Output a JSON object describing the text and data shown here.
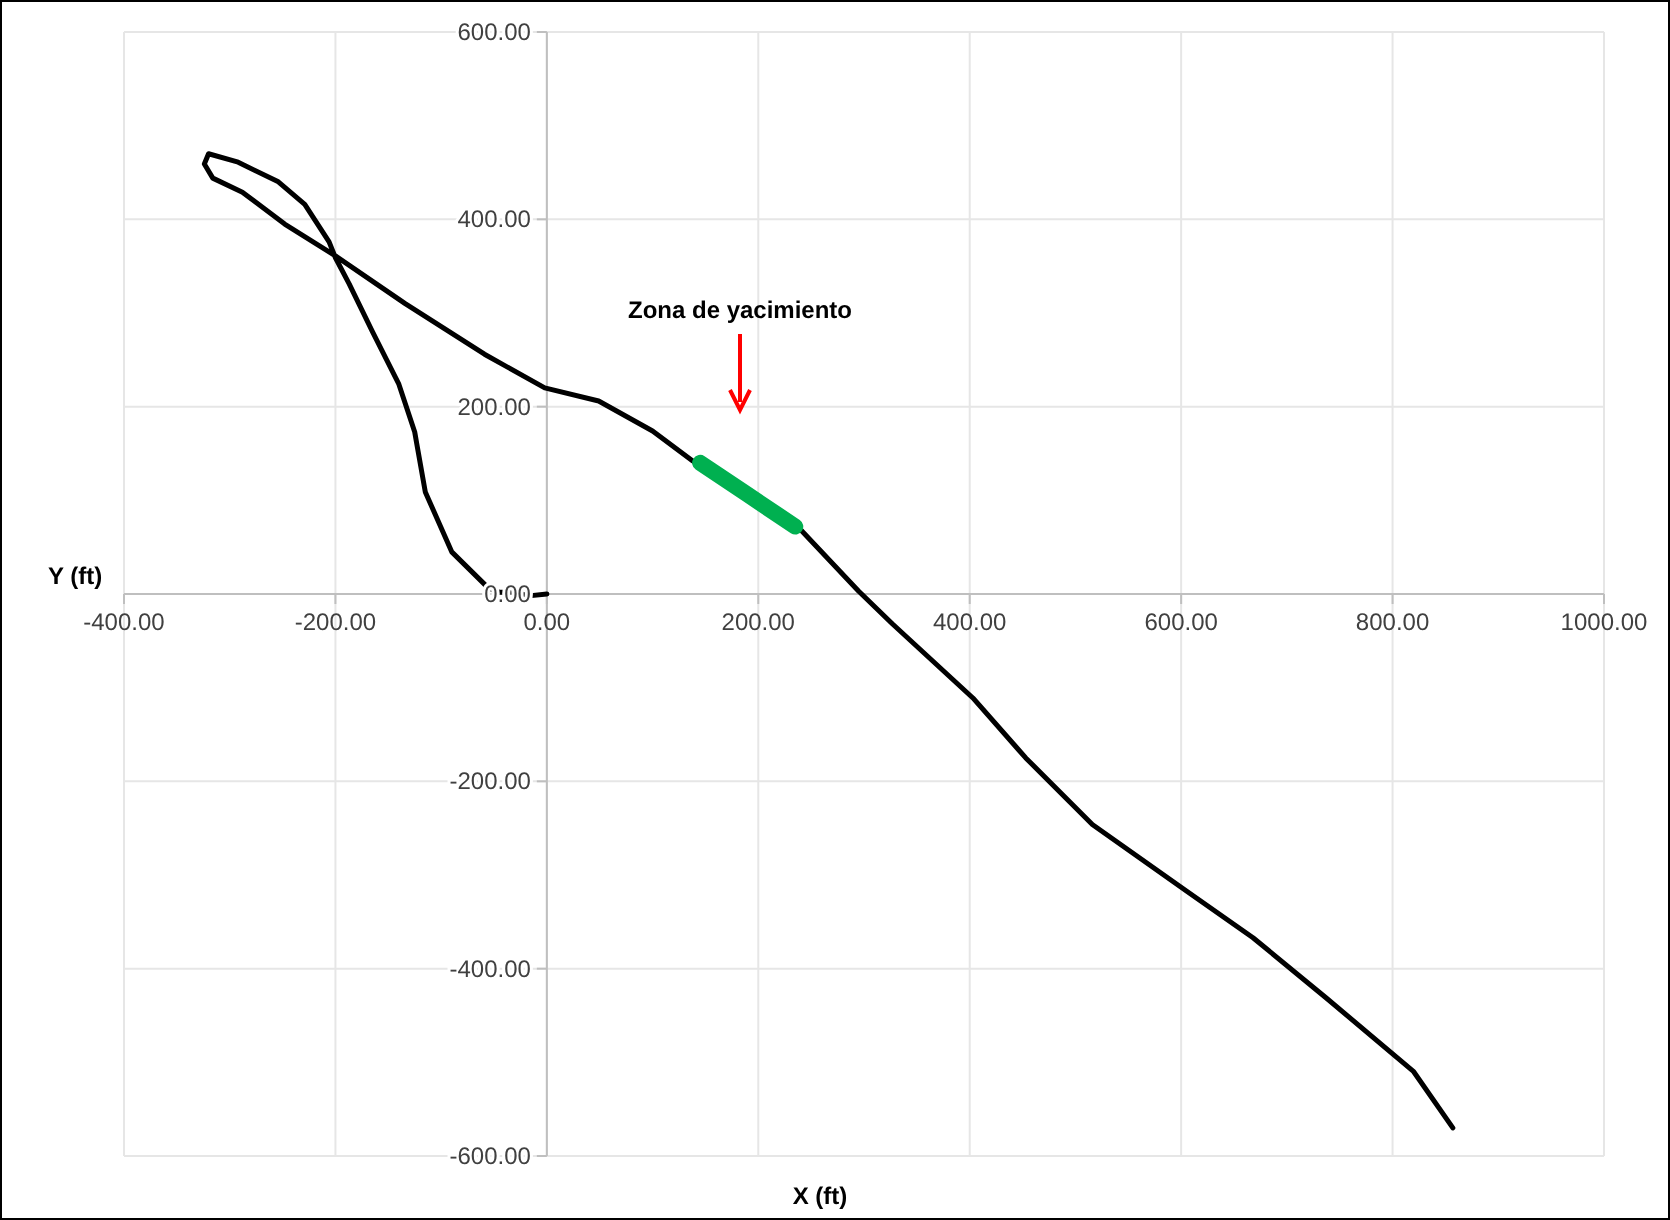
{
  "chart_data": {
    "type": "line",
    "xlabel": "X (ft)",
    "ylabel": "Y (ft)",
    "xlim": [
      -400,
      1000
    ],
    "ylim": [
      -600,
      600
    ],
    "xticks": [
      {
        "value": -400,
        "label": "-400.00"
      },
      {
        "value": -200,
        "label": "-200.00"
      },
      {
        "value": 0,
        "label": "0.00"
      },
      {
        "value": 200,
        "label": "200.00"
      },
      {
        "value": 400,
        "label": "400.00"
      },
      {
        "value": 600,
        "label": "600.00"
      },
      {
        "value": 800,
        "label": "800.00"
      },
      {
        "value": 1000,
        "label": "1000.00"
      }
    ],
    "yticks": [
      {
        "value": -600,
        "label": "-600.00"
      },
      {
        "value": -400,
        "label": "-400.00"
      },
      {
        "value": -200,
        "label": "-200.00"
      },
      {
        "value": 0,
        "label": "0.00"
      },
      {
        "value": 200,
        "label": "200.00"
      },
      {
        "value": 400,
        "label": "400.00"
      },
      {
        "value": 600,
        "label": "600.00"
      }
    ],
    "grid": true,
    "marker": "none",
    "line_style": "solid",
    "series": [
      {
        "color": "#000000",
        "x": [
          0,
          -17,
          -30,
          -45,
          -55,
          -90,
          -115,
          -123,
          -125,
          -140,
          -165,
          -187,
          -200,
          -206,
          -229,
          -254,
          -292,
          -320,
          -324,
          -316,
          -288,
          -248,
          -200,
          -134,
          -59,
          -2,
          49,
          100,
          138,
          239,
          295,
          327,
          403,
          453,
          516,
          605,
          668,
          737,
          820,
          857
        ],
        "values": [
          0,
          -2,
          2,
          2,
          6,
          45,
          109,
          160,
          173,
          224,
          280,
          331,
          359,
          376,
          416,
          440,
          461,
          470,
          459,
          444,
          429,
          395,
          361,
          310,
          256,
          220,
          206,
          174,
          142,
          70,
          3,
          -32,
          -111,
          -175,
          -246,
          -317,
          -367,
          -431,
          -510,
          -570
        ]
      },
      {
        "color": "#00b050",
        "x": [
          145,
          190,
          235
        ],
        "values": [
          140,
          106,
          72
        ]
      }
    ],
    "annotations": [
      "Zona de yacimiento"
    ]
  }
}
